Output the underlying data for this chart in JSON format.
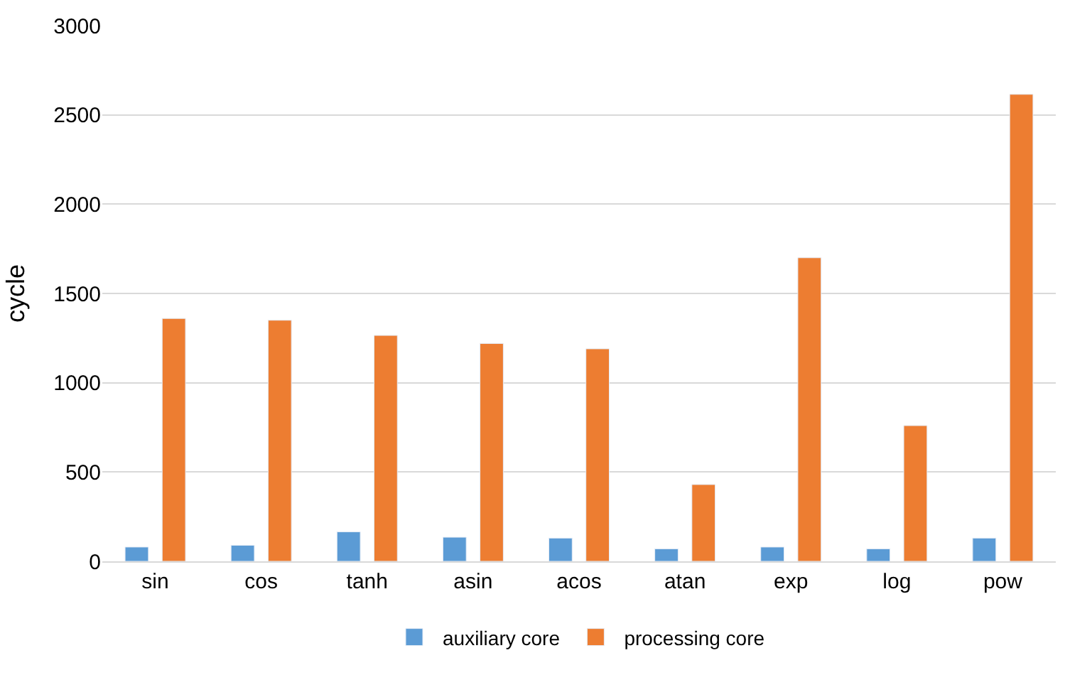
{
  "chart_data": {
    "type": "bar",
    "ylabel": "cycle",
    "categories": [
      "sin",
      "cos",
      "tanh",
      "asin",
      "acos",
      "atan",
      "exp",
      "log",
      "pow"
    ],
    "series": [
      {
        "name": "auxiliary core",
        "color": "#5b9bd5",
        "values": [
          80,
          90,
          165,
          135,
          130,
          70,
          80,
          70,
          130
        ]
      },
      {
        "name": "processing core",
        "color": "#ed7d31",
        "values": [
          1360,
          1350,
          1265,
          1220,
          1190,
          430,
          1700,
          760,
          2615
        ]
      }
    ],
    "ylim": [
      0,
      3000
    ],
    "yticks": [
      0,
      500,
      1000,
      1500,
      2000,
      2500,
      3000
    ],
    "grid": "y",
    "legend": "bottom"
  }
}
